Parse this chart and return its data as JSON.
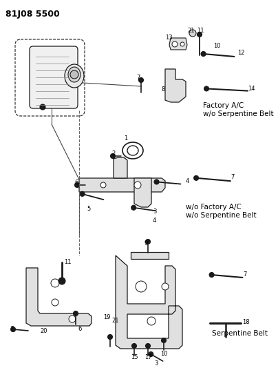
{
  "title": "81J08 5500",
  "background_color": "#ffffff",
  "text_color": "#000000",
  "fig_width": 4.04,
  "fig_height": 5.33,
  "dpi": 100,
  "labels": {
    "section1": "Factory A/C\nw/o Serpentine Belt",
    "section2": "w/o Factory A/C\nw/o Serpentine Belt",
    "section3": "Serpentine Belt"
  }
}
